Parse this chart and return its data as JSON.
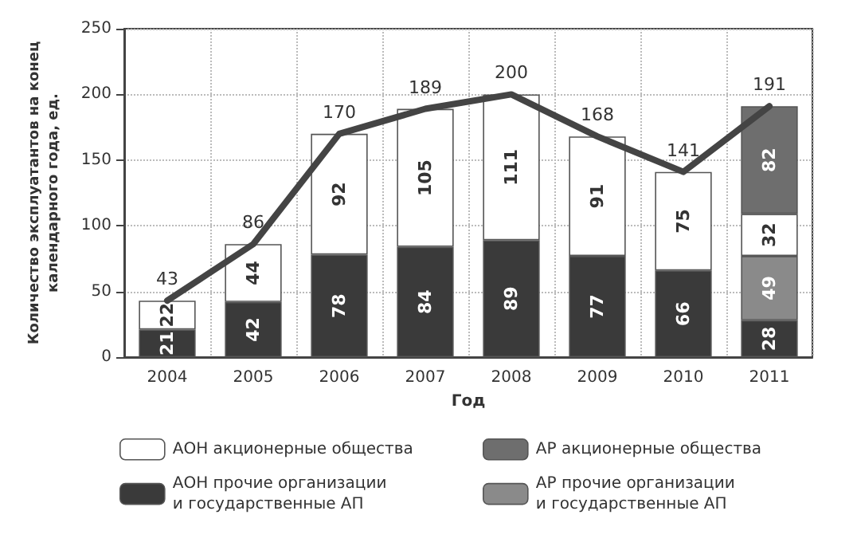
{
  "chart_data": {
    "type": "bar",
    "stacked": true,
    "xlabel": "Год",
    "ylabel": "Количество эксплуатантов на конец\nкалендарного года, ед.",
    "categories": [
      "2004",
      "2005",
      "2006",
      "2007",
      "2008",
      "2009",
      "2010",
      "2011"
    ],
    "series": [
      {
        "name": "АОН прочие организации\nи государственные АП",
        "color": "#3a3a3a",
        "values": [
          21,
          42,
          78,
          84,
          89,
          77,
          66,
          28
        ]
      },
      {
        "name": "АР прочие организации\nи государственные АП",
        "color": "#8a8a8a",
        "values": [
          null,
          null,
          null,
          null,
          null,
          null,
          null,
          49
        ]
      },
      {
        "name": "АОН акционерные общества",
        "color": "#ffffff",
        "values": [
          22,
          44,
          92,
          105,
          111,
          91,
          75,
          32
        ]
      },
      {
        "name": "АР акционерные общества",
        "color": "#6e6e6e",
        "values": [
          null,
          null,
          null,
          null,
          null,
          null,
          null,
          82
        ]
      },
      {
        "type": "line",
        "color": "#444444",
        "values": [
          43,
          86,
          170,
          189,
          200,
          168,
          141,
          191
        ]
      }
    ],
    "ylim": [
      0,
      250
    ],
    "yticks": [
      0,
      50,
      100,
      150,
      200,
      250
    ],
    "grid": true,
    "legend": "bottom",
    "data_labels": true,
    "marker": "none",
    "line_style": "solid"
  }
}
